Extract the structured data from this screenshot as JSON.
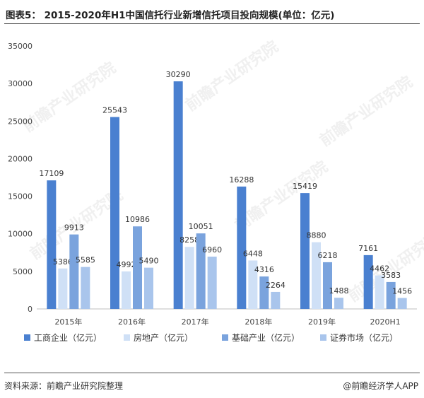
{
  "title": "图表5： 2015-2020年H1中国信托行业新增信托项目投向规模(单位：亿元)",
  "source": "资料来源：前瞻产业研究院整理",
  "brand": "@前瞻经济学人APP",
  "watermark": "前瞻产业研究院",
  "colors": {
    "s1": "#4a80d0",
    "s2": "#cfe0f6",
    "s3": "#7aa3dd",
    "s4": "#a9c5ec",
    "axis": "#bfbfbf",
    "text": "#444444"
  },
  "chart_data": {
    "type": "bar",
    "categories": [
      "2015年",
      "2016年",
      "2017年",
      "2018年",
      "2019年",
      "2020H1"
    ],
    "series": [
      {
        "name": "工商企业（亿元）",
        "values": [
          17109,
          25543,
          30290,
          16288,
          15419,
          7161
        ]
      },
      {
        "name": "房地产（亿元）",
        "values": [
          5386,
          4992,
          8258,
          6448,
          8880,
          4462
        ]
      },
      {
        "name": "基础产业（亿元）",
        "values": [
          9913,
          10986,
          10051,
          4316,
          6218,
          3583
        ]
      },
      {
        "name": "证券市场（亿元）",
        "values": [
          5585,
          5490,
          6960,
          2264,
          1488,
          1456
        ]
      }
    ],
    "ylim": [
      0,
      35000
    ],
    "yticks": [
      0,
      5000,
      10000,
      15000,
      20000,
      25000,
      30000,
      35000
    ],
    "legend_position": "bottom",
    "grid": false
  }
}
